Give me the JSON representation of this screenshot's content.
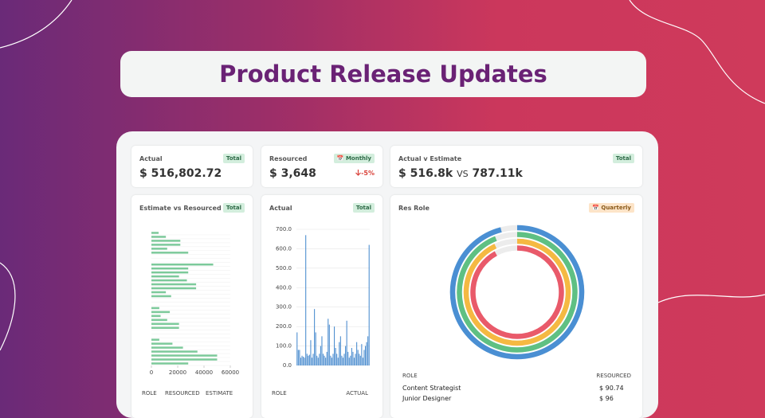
{
  "title": "Product Release Updates",
  "kpis": [
    {
      "label": "Actual",
      "badge": "Total",
      "value": "$ 516,802.72"
    },
    {
      "label": "Resourced",
      "badge": "Monthly",
      "value": "$ 3,648",
      "change": "-5%"
    },
    {
      "label": "Actual v Estimate",
      "badge": "Total",
      "value": "$ 516.8k",
      "vs": "VS",
      "compare": "787.11k"
    }
  ],
  "panels": {
    "estimate": {
      "title": "Estimate vs Resourced",
      "badge": "Total",
      "chart": {
        "type": "bar",
        "orientation": "horizontal",
        "color": "#7cc99a",
        "values": [
          5500,
          11000,
          22000,
          22000,
          12000,
          28000,
          null,
          null,
          47000,
          28000,
          28000,
          21000,
          27000,
          34000,
          34000,
          11000,
          15000,
          null,
          null,
          6000,
          14000,
          7000,
          12000,
          21000,
          21000,
          null,
          null,
          6000,
          16000,
          24000,
          35000,
          50000,
          50000,
          28000
        ],
        "xlim": [
          0,
          60000
        ],
        "xticks": [
          0,
          20000,
          40000,
          60000
        ]
      },
      "columns": [
        "ROLE",
        "RESOURCED",
        "ESTIMATE"
      ]
    },
    "actual": {
      "title": "Actual",
      "badge": "Total",
      "chart": {
        "type": "bar",
        "orientation": "vertical",
        "color": "#4f8fd0",
        "values": [
          170,
          80,
          80,
          40,
          50,
          45,
          40,
          670,
          60,
          50,
          55,
          130,
          40,
          60,
          290,
          170,
          50,
          40,
          60,
          100,
          150,
          60,
          50,
          40,
          70,
          240,
          210,
          50,
          40,
          60,
          200,
          90,
          60,
          40,
          120,
          150,
          50,
          40,
          60,
          100,
          230,
          70,
          40,
          50,
          90,
          70,
          40,
          60,
          120,
          80,
          60,
          50,
          110,
          40,
          80,
          100,
          120,
          150,
          620
        ],
        "ylim": [
          0,
          700
        ],
        "yticks": [
          {
            "value": 0,
            "label": "0.0"
          },
          {
            "value": 100,
            "label": "100.0"
          },
          {
            "value": 200,
            "label": "200.0"
          },
          {
            "value": 300,
            "label": "300.0"
          },
          {
            "value": 400,
            "label": "400.0"
          },
          {
            "value": 500,
            "label": "500.0"
          },
          {
            "value": 600,
            "label": "600.0"
          },
          {
            "value": 700,
            "label": "700.0"
          }
        ],
        "grid": true
      },
      "columns": [
        "ROLE",
        "ACTUAL"
      ]
    },
    "role": {
      "title": "Res Role",
      "badge": "Quarterly",
      "chart": {
        "type": "radial",
        "values": [
          96,
          94,
          93,
          92
        ],
        "colors": [
          "#4a8fd3",
          "#5fc083",
          "#f5b942",
          "#e95a6a"
        ]
      },
      "columns": [
        "ROLE",
        "RESOURCED"
      ],
      "rows": [
        [
          "Content Strategist",
          "$ 90.74"
        ],
        [
          "Junior Designer",
          "$ 96"
        ]
      ]
    }
  }
}
